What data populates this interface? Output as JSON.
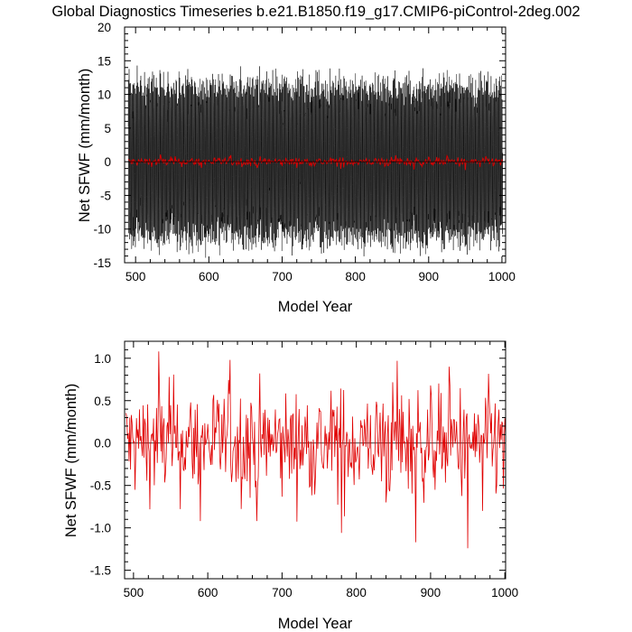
{
  "title": "Global Diagnostics Timeseries b.e21.B1850.f19_g17.CMIP6-piControl-2deg.002",
  "colors": {
    "monthly": "#000000",
    "annual": "#e00000",
    "zero_line": "#000000"
  },
  "chart_data": [
    {
      "type": "line",
      "xlabel": "Model Year",
      "ylabel": "Net SFWF (mm/month)",
      "xlim": [
        485,
        1005
      ],
      "ylim": [
        -15,
        20
      ],
      "xticks": [
        500,
        600,
        700,
        800,
        900,
        1000
      ],
      "yticks": [
        -15,
        -10,
        -5,
        0,
        5,
        10,
        15,
        20
      ],
      "xtick_labels": [
        "500",
        "600",
        "700",
        "800",
        "900",
        "1000"
      ],
      "ytick_labels": [
        "-15",
        "-10",
        "-5",
        "0",
        "5",
        "10",
        "15",
        "20"
      ],
      "reference_line": 0,
      "series": [
        {
          "color": "#000000",
          "x_range": [
            490,
            1001
          ],
          "samples_per_year": 12,
          "seasonal_amplitude": 11.5,
          "noise_amplitude": 2.2,
          "min": -14.6,
          "max": 17.7
        },
        {
          "color": "#e00000",
          "x_range": [
            490,
            1001
          ],
          "samples_per_year": 1,
          "values_ref": "chart_data.1.series.0"
        }
      ]
    },
    {
      "type": "line",
      "xlabel": "Model Year",
      "ylabel": "Net SFWF (mm/month)",
      "xlim": [
        488,
        1001
      ],
      "ylim": [
        -1.6,
        1.2
      ],
      "xticks": [
        500,
        600,
        700,
        800,
        900,
        1000
      ],
      "yticks": [
        -1.5,
        -1.0,
        -0.5,
        0.0,
        0.5,
        1.0
      ],
      "xtick_labels": [
        "500",
        "600",
        "700",
        "800",
        "900",
        "1000"
      ],
      "ytick_labels": [
        "-1.5",
        "-1.0",
        "-0.5",
        "0.0",
        "0.5",
        "1.0"
      ],
      "reference_line": 0,
      "series": [
        {
          "color": "#e00000",
          "x_range": [
            490,
            1001
          ],
          "samples_per_year": 1,
          "peaks": [
            [
              534,
              1.08
            ],
            [
              630,
              0.98
            ],
            [
              855,
              0.97
            ],
            [
              925,
              0.9
            ],
            [
              548,
              0.78
            ],
            [
              880,
              -1.17
            ],
            [
              950,
              -1.24
            ],
            [
              590,
              -0.92
            ],
            [
              780,
              -1.06
            ],
            [
              666,
              -0.92
            ],
            [
              840,
              -0.7
            ],
            [
              970,
              -0.8
            ]
          ],
          "min": -1.24,
          "max": 1.08
        }
      ]
    }
  ]
}
